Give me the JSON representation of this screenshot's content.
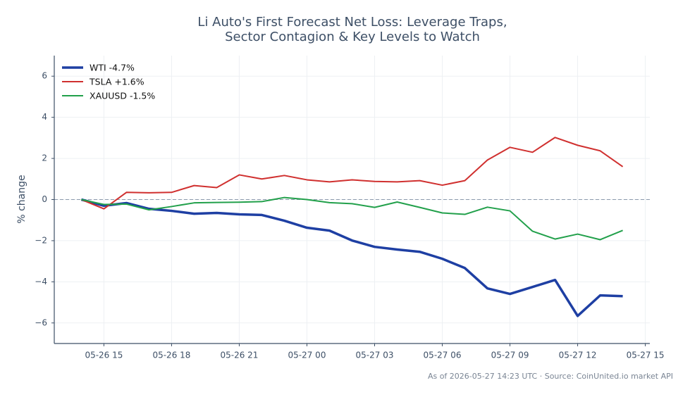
{
  "chart_data": {
    "type": "line",
    "title": "Li Auto's First Forecast Net Loss: Leverage Traps,",
    "subtitle": "Sector Contagion & Key Levels to Watch",
    "y_label": "% change",
    "footer": "As of 2026-05-27 14:23 UTC · Source: CoinUnited.io market API",
    "x": [
      "05-26 14",
      "05-26 15",
      "05-26 16",
      "05-26 17",
      "05-26 18",
      "05-26 19",
      "05-26 20",
      "05-26 21",
      "05-26 22",
      "05-26 23",
      "05-27 00",
      "05-27 01",
      "05-27 02",
      "05-27 03",
      "05-27 04",
      "05-27 05",
      "05-27 06",
      "05-27 07",
      "05-27 08",
      "05-27 09",
      "05-27 10",
      "05-27 11",
      "05-27 12",
      "05-27 13",
      "05-27 14"
    ],
    "xlim": [
      "05-26 12:48",
      "05-27 15:12"
    ],
    "xticks": [
      "05-26 15",
      "05-26 18",
      "05-26 21",
      "05-27 00",
      "05-27 03",
      "05-27 06",
      "05-27 09",
      "05-27 12",
      "05-27 15"
    ],
    "ylim": [
      -7,
      7
    ],
    "yticks": [
      {
        "value": -6,
        "label": "−6"
      },
      {
        "value": -4,
        "label": "−4"
      },
      {
        "value": -2,
        "label": "−2"
      },
      0,
      2,
      4,
      6
    ],
    "grid": true,
    "hline": 0,
    "legend": "upper left",
    "series": [
      {
        "name": "WTI -4.7%",
        "color": "#1e3fa3",
        "width": 3.5,
        "values": [
          0.0,
          -0.3,
          -0.17,
          -0.45,
          -0.55,
          -0.69,
          -0.65,
          -0.72,
          -0.75,
          -1.03,
          -1.37,
          -1.51,
          -1.99,
          -2.3,
          -2.43,
          -2.54,
          -2.88,
          -3.33,
          -4.32,
          -4.59,
          -4.25,
          -3.91,
          -5.66,
          -4.66,
          -4.7
        ]
      },
      {
        "name": "TSLA +1.6%",
        "color": "#d0302f",
        "width": 2,
        "values": [
          0.0,
          -0.45,
          0.35,
          0.33,
          0.35,
          0.68,
          0.58,
          1.2,
          1.0,
          1.17,
          0.96,
          0.86,
          0.96,
          0.88,
          0.86,
          0.92,
          0.7,
          0.92,
          1.92,
          2.54,
          2.3,
          3.02,
          2.64,
          2.37,
          1.6
        ]
      },
      {
        "name": "XAUUSD -1.5%",
        "color": "#22a04b",
        "width": 2,
        "values": [
          0.0,
          -0.24,
          -0.22,
          -0.5,
          -0.34,
          -0.16,
          -0.14,
          -0.13,
          -0.1,
          0.1,
          0.0,
          -0.15,
          -0.2,
          -0.38,
          -0.12,
          -0.38,
          -0.65,
          -0.72,
          -0.37,
          -0.55,
          -1.54,
          -1.92,
          -1.68,
          -1.95,
          -1.5
        ]
      }
    ]
  }
}
